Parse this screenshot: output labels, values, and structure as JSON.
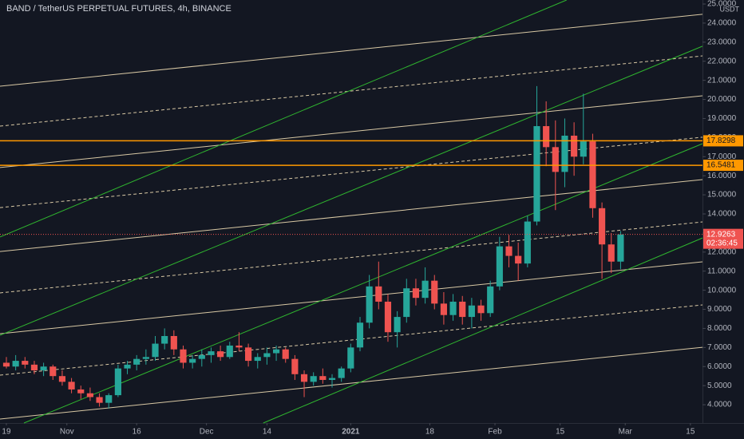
{
  "chart_data": {
    "type": "candlestick",
    "title": "BAND / TetherUS PERPETUAL FUTURES, 4h, BINANCE",
    "currency": "USDT",
    "up_color": "#26a69a",
    "down_color": "#ef5350",
    "grid": false,
    "xlim": [
      -1.37,
      149.6
    ],
    "ylim": [
      3.04,
      25.21
    ],
    "xticks": [
      {
        "value": 0,
        "label": "19"
      },
      {
        "value": 13,
        "label": "Nov"
      },
      {
        "value": 28,
        "label": "16"
      },
      {
        "value": 43,
        "label": "Dec"
      },
      {
        "value": 56,
        "label": "14"
      },
      {
        "value": 74,
        "label": "2021"
      },
      {
        "value": 91,
        "label": "18"
      },
      {
        "value": 105,
        "label": "Feb"
      },
      {
        "value": 119,
        "label": "15"
      },
      {
        "value": 133,
        "label": "Mar"
      },
      {
        "value": 147,
        "label": "15"
      }
    ],
    "yticks": [
      {
        "value": 4,
        "label": "4.0000"
      },
      {
        "value": 5,
        "label": "5.0000"
      },
      {
        "value": 6,
        "label": "6.0000"
      },
      {
        "value": 7,
        "label": "7.0000"
      },
      {
        "value": 8,
        "label": "8.0000"
      },
      {
        "value": 9,
        "label": "9.0000"
      },
      {
        "value": 10,
        "label": "10.0000"
      },
      {
        "value": 11,
        "label": "11.0000"
      },
      {
        "value": 12,
        "label": "12.0000"
      },
      {
        "value": 13,
        "label": "13.0000"
      },
      {
        "value": 14,
        "label": "14.0000"
      },
      {
        "value": 15,
        "label": "15.0000"
      },
      {
        "value": 16,
        "label": "16.0000"
      },
      {
        "value": 17,
        "label": "17.0000"
      },
      {
        "value": 18,
        "label": "18.0000"
      },
      {
        "value": 19,
        "label": "19.0000"
      },
      {
        "value": 20,
        "label": "20.0000"
      },
      {
        "value": 21,
        "label": "21.0000"
      },
      {
        "value": 22,
        "label": "22.0000"
      },
      {
        "value": 23,
        "label": "23.0000"
      },
      {
        "value": 24,
        "label": "24.0000"
      },
      {
        "value": 25,
        "label": "25.0000"
      }
    ],
    "x": [
      0,
      2,
      4,
      6,
      8,
      10,
      12,
      14,
      16,
      18,
      20,
      22,
      24,
      26,
      28,
      30,
      32,
      34,
      36,
      38,
      40,
      42,
      44,
      46,
      48,
      50,
      52,
      54,
      56,
      58,
      60,
      62,
      64,
      66,
      68,
      70,
      72,
      74,
      76,
      78,
      80,
      82,
      84,
      86,
      88,
      90,
      92,
      94,
      96,
      98,
      100,
      102,
      104,
      106,
      108,
      110,
      112,
      114,
      116,
      118,
      120,
      122,
      124,
      126,
      128,
      130,
      132
    ],
    "open": [
      6.2,
      6.0,
      6.3,
      6.1,
      5.8,
      6.0,
      5.5,
      5.2,
      4.8,
      4.6,
      4.4,
      4.1,
      4.5,
      5.9,
      6.1,
      6.4,
      6.5,
      7.2,
      7.6,
      6.9,
      6.2,
      6.4,
      6.6,
      6.8,
      6.5,
      7.1,
      7.0,
      6.3,
      6.5,
      6.7,
      6.9,
      6.4,
      5.6,
      5.2,
      5.5,
      5.3,
      5.4,
      5.9,
      7.0,
      8.3,
      10.2,
      9.4,
      7.8,
      8.6,
      10.1,
      9.6,
      10.5,
      9.3,
      8.7,
      9.4,
      8.6,
      9.2,
      8.8,
      10.2,
      12.3,
      11.8,
      11.4,
      13.6,
      18.6,
      17.5,
      16.2,
      18.1,
      17.0,
      17.8,
      14.3,
      12.4,
      11.5
    ],
    "high": [
      6.5,
      6.6,
      6.5,
      6.3,
      6.2,
      6.1,
      5.8,
      5.4,
      5.0,
      4.9,
      4.6,
      4.6,
      6.1,
      6.3,
      6.6,
      6.9,
      7.6,
      8.0,
      7.9,
      7.1,
      6.6,
      6.9,
      7.0,
      7.1,
      7.3,
      7.8,
      7.2,
      6.7,
      7.0,
      7.1,
      7.0,
      6.6,
      5.8,
      5.7,
      5.9,
      5.6,
      6.0,
      7.2,
      8.6,
      10.8,
      11.5,
      9.8,
      8.9,
      10.6,
      10.6,
      11.2,
      10.8,
      9.9,
      9.8,
      9.7,
      9.6,
      9.5,
      10.5,
      12.8,
      12.9,
      12.5,
      13.9,
      20.7,
      19.9,
      18.9,
      19.0,
      18.8,
      20.3,
      18.2,
      14.6,
      13.0,
      13.1
    ],
    "low": [
      5.9,
      5.8,
      5.9,
      5.6,
      5.5,
      5.3,
      5.0,
      4.6,
      4.3,
      4.2,
      3.9,
      3.8,
      4.4,
      5.6,
      5.8,
      6.1,
      6.3,
      6.9,
      6.6,
      5.9,
      5.9,
      6.0,
      6.2,
      6.3,
      6.4,
      6.8,
      6.0,
      5.9,
      6.1,
      6.3,
      6.2,
      5.3,
      4.4,
      5.0,
      5.1,
      4.9,
      5.2,
      5.7,
      6.8,
      8.0,
      9.0,
      7.3,
      7.0,
      8.3,
      9.2,
      9.3,
      9.0,
      8.2,
      8.4,
      8.2,
      8.0,
      8.4,
      8.6,
      10.0,
      11.2,
      10.5,
      11.2,
      13.4,
      16.5,
      14.2,
      15.4,
      16.0,
      16.6,
      13.8,
      10.6,
      10.9,
      11.1
    ],
    "close": [
      6.0,
      6.3,
      6.1,
      5.8,
      6.0,
      5.5,
      5.2,
      4.8,
      4.6,
      4.4,
      4.1,
      4.5,
      5.9,
      6.1,
      6.4,
      6.5,
      7.2,
      7.6,
      6.9,
      6.2,
      6.4,
      6.6,
      6.8,
      6.5,
      7.1,
      7.0,
      6.3,
      6.5,
      6.7,
      6.9,
      6.4,
      5.6,
      5.2,
      5.5,
      5.3,
      5.4,
      5.9,
      7.0,
      8.3,
      10.2,
      9.4,
      7.8,
      8.6,
      10.1,
      9.6,
      10.5,
      9.3,
      8.7,
      9.4,
      8.6,
      9.2,
      8.8,
      10.2,
      12.3,
      11.8,
      11.4,
      13.6,
      18.6,
      17.5,
      16.2,
      18.1,
      17.0,
      17.8,
      14.3,
      12.4,
      11.5,
      12.9263
    ],
    "trendlines": [
      {
        "x": [
          -1.37,
          149.6
        ],
        "y": [
          20.69,
          24.46
        ],
        "color": "#d8c8a4",
        "dash": false
      },
      {
        "x": [
          -1.37,
          149.6
        ],
        "y": [
          16.43,
          20.19
        ],
        "color": "#d8c8a4",
        "dash": false
      },
      {
        "x": [
          -1.37,
          149.6
        ],
        "y": [
          12.03,
          15.8
        ],
        "color": "#d8c8a4",
        "dash": false
      },
      {
        "x": [
          -1.37,
          149.6
        ],
        "y": [
          7.72,
          11.49
        ],
        "color": "#d8c8a4",
        "dash": false
      },
      {
        "x": [
          -1.37,
          149.6
        ],
        "y": [
          3.25,
          7.01
        ],
        "color": "#d8c8a4",
        "dash": false
      },
      {
        "x": [
          -1.37,
          149.6
        ],
        "y": [
          18.6,
          22.28
        ],
        "color": "#d8c8a4",
        "dash": true
      },
      {
        "x": [
          -1.37,
          149.6
        ],
        "y": [
          14.33,
          18.02
        ],
        "color": "#d8c8a4",
        "dash": true
      },
      {
        "x": [
          -1.37,
          149.6
        ],
        "y": [
          9.86,
          13.58
        ],
        "color": "#d8c8a4",
        "dash": true
      },
      {
        "x": [
          -1.37,
          149.6
        ],
        "y": [
          5.55,
          9.23
        ],
        "color": "#d8c8a4",
        "dash": true
      },
      {
        "x": [
          3.77,
          149.6
        ],
        "y": [
          3.04,
          17.68
        ],
        "color": "#2fb52f",
        "dash": false
      },
      {
        "x": [
          55.2,
          149.6
        ],
        "y": [
          3.04,
          12.74
        ],
        "color": "#2fb52f",
        "dash": false
      },
      {
        "x": [
          -1.37,
          149.6
        ],
        "y": [
          7.64,
          22.79
        ],
        "color": "#2fb52f",
        "dash": false
      },
      {
        "x": [
          -1.37,
          120.4
        ],
        "y": [
          12.79,
          25.21
        ],
        "color": "#2fb52f",
        "dash": false
      }
    ],
    "levels": [
      {
        "value": 17.8298,
        "color": "#ff9800"
      },
      {
        "value": 16.5481,
        "color": "#ff9800"
      }
    ],
    "last_price": {
      "value": 12.9263,
      "countdown": "02:36:45",
      "color": "#ef5350"
    }
  }
}
